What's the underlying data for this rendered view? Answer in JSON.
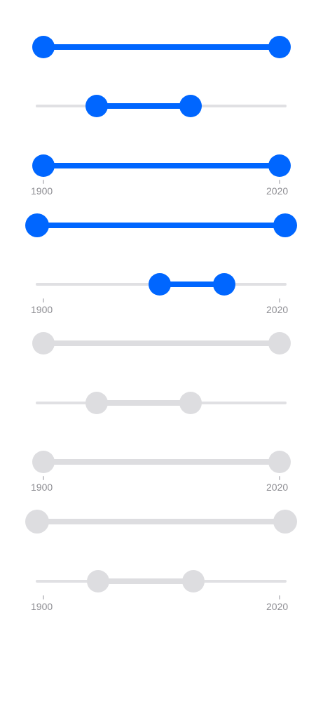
{
  "sliders": [
    {
      "state": "active",
      "min": 1900,
      "max": 2020,
      "low": 1900,
      "high": 2020
    },
    {
      "state": "active",
      "min": 1900,
      "max": 2020,
      "low": 1932,
      "high": 1970
    },
    {
      "state": "active",
      "min": 1900,
      "max": 2020,
      "low": 1900,
      "high": 2020,
      "min_label": "1900",
      "max_label": "2020"
    },
    {
      "state": "active",
      "min": 1900,
      "max": 2020,
      "low": 1900,
      "high": 2020
    },
    {
      "state": "active",
      "min": 1900,
      "max": 2020,
      "low": 1958,
      "high": 1985,
      "min_label": "1900",
      "max_label": "2020"
    },
    {
      "state": "disabled",
      "min": 1900,
      "max": 2020,
      "low": 1900,
      "high": 2020
    },
    {
      "state": "disabled",
      "min": 1900,
      "max": 2020,
      "low": 1932,
      "high": 1970
    },
    {
      "state": "disabled",
      "min": 1900,
      "max": 2020,
      "low": 1900,
      "high": 2020,
      "min_label": "1900",
      "max_label": "2020"
    },
    {
      "state": "disabled",
      "min": 1900,
      "max": 2020,
      "low": 1900,
      "high": 2020
    },
    {
      "state": "disabled",
      "min": 1900,
      "max": 2020,
      "low": 1923,
      "high": 1965,
      "min_label": "1900",
      "max_label": "2020"
    }
  ],
  "colors": {
    "active": "#0066ff",
    "disabled": "#dddde0",
    "rail": "#e0e0e3",
    "tick_label": "#8e8e93"
  }
}
